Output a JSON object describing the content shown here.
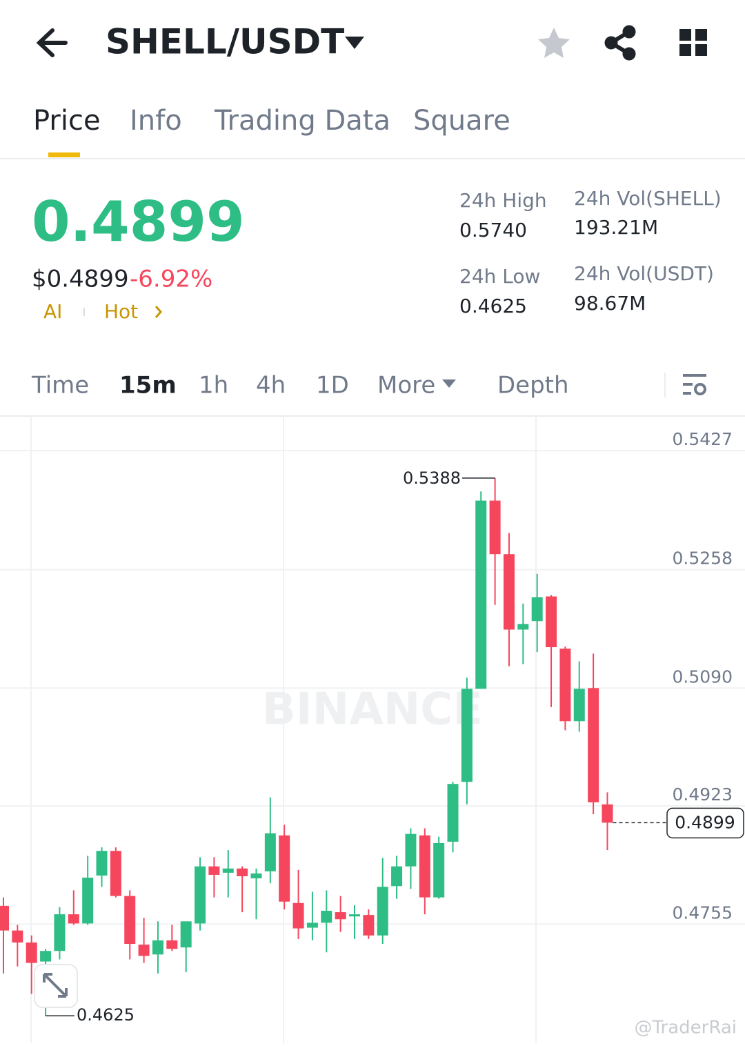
{
  "header": {
    "title": "SHELL/USDT"
  },
  "tabs": [
    "Price",
    "Info",
    "Trading Data",
    "Square"
  ],
  "ticker": {
    "price": "0.4899",
    "usd_price": "$0.4899",
    "change": "-6.92%",
    "tags": [
      "AI",
      "Hot"
    ],
    "stats": [
      {
        "label": "24h High",
        "value": "0.5740"
      },
      {
        "label": "24h Vol(SHELL)",
        "value": "193.21M"
      },
      {
        "label": "24h Low",
        "value": "0.4625"
      },
      {
        "label": "24h Vol(USDT)",
        "value": "98.67M"
      }
    ]
  },
  "intervals": [
    "Time",
    "15m",
    "1h",
    "4h",
    "1D",
    "More",
    "Depth"
  ],
  "watermarks": [
    "BINANCE",
    "@TraderRai"
  ],
  "chart_data": {
    "type": "candlestick",
    "up_color": "#2ebd85",
    "down_color": "#f6465d",
    "open": [
      0.4781,
      0.4746,
      0.4729,
      0.4702,
      0.4717,
      0.4769,
      0.4756,
      0.4824,
      0.4859,
      0.4795,
      0.4726,
      0.4712,
      0.4732,
      0.4722,
      0.4756,
      0.4837,
      0.4828,
      0.4834,
      0.482,
      0.483,
      0.4881,
      0.4785,
      0.475,
      0.4757,
      0.4772,
      0.4766,
      0.4768,
      0.4739,
      0.4809,
      0.4837,
      0.4881,
      0.4793,
      0.4872,
      0.4957,
      0.5089,
      0.5356,
      0.528,
      0.5173,
      0.5185,
      0.522,
      0.5146,
      0.5043,
      0.509,
      0.4925
    ],
    "high": [
      0.4793,
      0.4754,
      0.4739,
      0.472,
      0.4779,
      0.4803,
      0.4852,
      0.4864,
      0.4864,
      0.4803,
      0.4764,
      0.4759,
      0.4754,
      0.4759,
      0.485,
      0.485,
      0.486,
      0.4837,
      0.4834,
      0.4935,
      0.4896,
      0.4832,
      0.4801,
      0.4803,
      0.4795,
      0.4782,
      0.4776,
      0.4849,
      0.4852,
      0.4891,
      0.4891,
      0.4879,
      0.4957,
      0.5105,
      0.5369,
      0.5388,
      0.531,
      0.521,
      0.5252,
      0.5222,
      0.5149,
      0.5128,
      0.5139,
      0.4942
    ],
    "low": [
      0.4685,
      0.4695,
      0.4656,
      0.4625,
      0.4705,
      0.4754,
      0.4754,
      0.4808,
      0.4793,
      0.4705,
      0.47,
      0.4685,
      0.4717,
      0.4687,
      0.4746,
      0.4793,
      0.4793,
      0.4772,
      0.4762,
      0.4813,
      0.4776,
      0.4734,
      0.4732,
      0.4715,
      0.4744,
      0.4734,
      0.4734,
      0.4727,
      0.4791,
      0.4805,
      0.4769,
      0.4791,
      0.4857,
      0.4925,
      0.5089,
      0.5208,
      0.5121,
      0.5124,
      0.5141,
      0.5063,
      0.503,
      0.5028,
      0.4911,
      0.486
    ],
    "close": [
      0.4746,
      0.4729,
      0.47,
      0.4717,
      0.4769,
      0.4756,
      0.4821,
      0.4859,
      0.4795,
      0.4727,
      0.471,
      0.4732,
      0.472,
      0.4759,
      0.4837,
      0.4825,
      0.4834,
      0.4823,
      0.4827,
      0.4884,
      0.4787,
      0.4749,
      0.4757,
      0.4774,
      0.4762,
      0.4769,
      0.4739,
      0.4808,
      0.4837,
      0.4883,
      0.4793,
      0.487,
      0.4954,
      0.5089,
      0.5356,
      0.528,
      0.5173,
      0.5181,
      0.5219,
      0.5148,
      0.5043,
      0.5089,
      0.4928,
      0.4899
    ],
    "ylim": [
      0.4588,
      0.5476
    ],
    "yticks": [
      0.5427,
      0.5258,
      {
        "value": 0.509,
        "label": "0.5090"
      },
      0.4923,
      0.4755
    ],
    "max_label": 0.5388,
    "min_label": 0.4625,
    "last_price": 0.4899
  }
}
